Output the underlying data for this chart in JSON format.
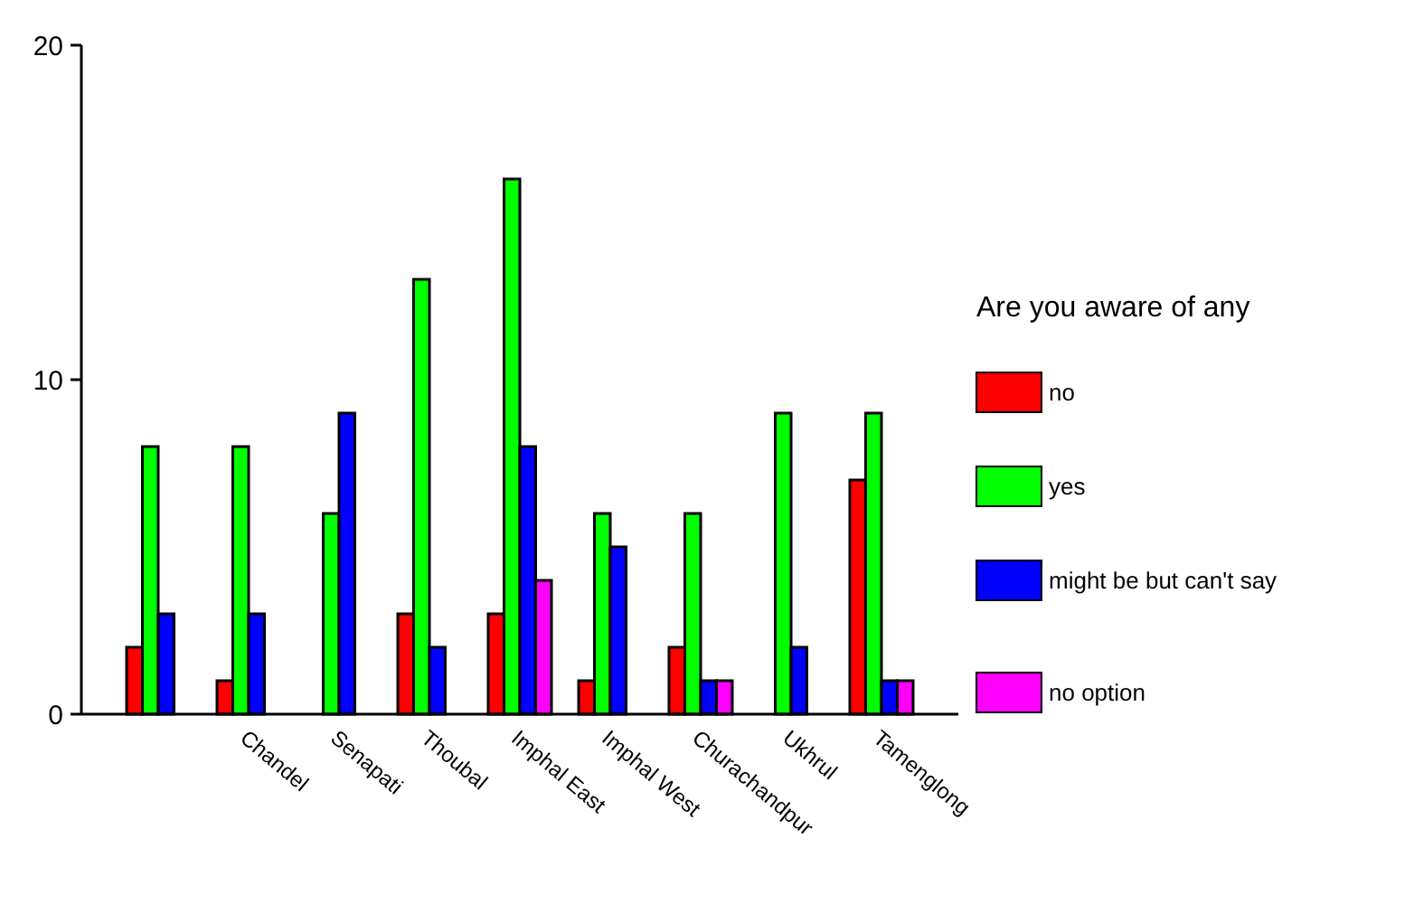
{
  "chart_data": {
    "type": "bar",
    "legend_title": "Are you aware of any",
    "categories": [
      null,
      "Chandel",
      "Senapati",
      "Thoubal",
      "Imphal East",
      "Imphal West",
      "Churachandpur",
      "Ukhrul",
      "Tamenglong"
    ],
    "series": [
      {
        "name": "no",
        "color": "#ff0000",
        "values": [
          2,
          1,
          null,
          3,
          3,
          1,
          2,
          null,
          7
        ]
      },
      {
        "name": "yes",
        "color": "#00ff00",
        "values": [
          8,
          8,
          6,
          13,
          16,
          6,
          6,
          9,
          9
        ]
      },
      {
        "name": "might be but can't say",
        "color": "#0000ff",
        "values": [
          3,
          3,
          9,
          2,
          8,
          5,
          1,
          2,
          1
        ]
      },
      {
        "name": "no option",
        "color": "#ff00ff",
        "values": [
          null,
          null,
          null,
          null,
          4,
          null,
          1,
          null,
          1
        ]
      }
    ],
    "ylim": [
      0,
      20
    ],
    "yticks": [
      0,
      10,
      20
    ],
    "grid": false,
    "legend": "right"
  }
}
